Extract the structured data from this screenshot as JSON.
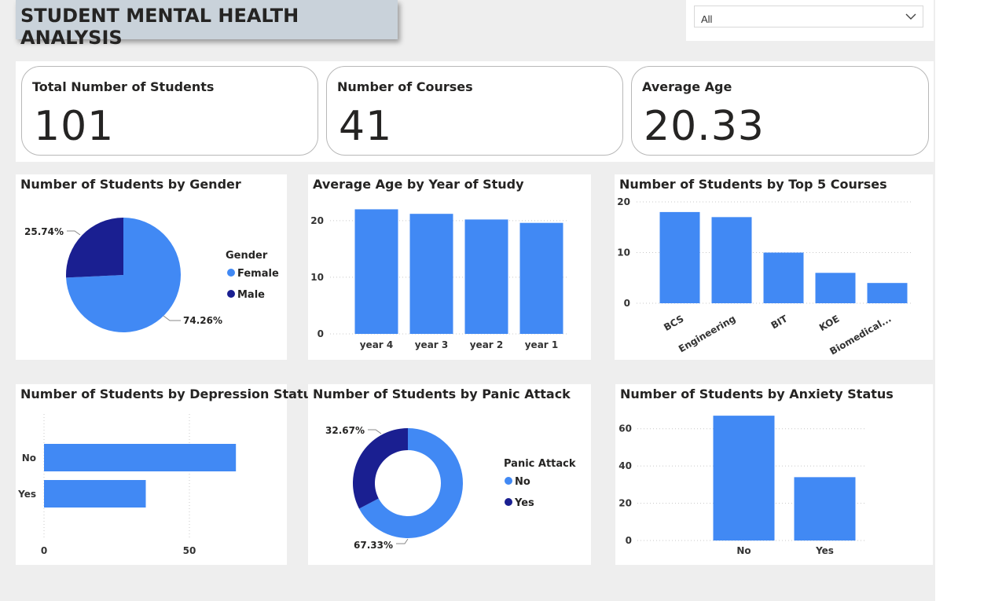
{
  "header": {
    "title": "STUDENT MENTAL HEALTH ANALYSIS"
  },
  "slicer": {
    "selected": "All"
  },
  "kpis": [
    {
      "label": "Total Number of Students",
      "value": "101"
    },
    {
      "label": "Number of Courses",
      "value": "41"
    },
    {
      "label": "Average Age",
      "value": "20.33"
    }
  ],
  "colors": {
    "primary": "#4189f4",
    "secondary": "#1a1f91",
    "background": "#eeeeee",
    "title_box": "#c9d2da"
  },
  "chart_data": [
    {
      "id": "gender",
      "type": "pie",
      "title": "Number of Students by Gender",
      "legend_title": "Gender",
      "legend_position": "right",
      "slices": [
        {
          "name": "Female",
          "value": 74.26,
          "label": "74.26%",
          "color": "#4189f4"
        },
        {
          "name": "Male",
          "value": 25.74,
          "label": "25.74%",
          "color": "#1a1f91"
        }
      ]
    },
    {
      "id": "age_year",
      "type": "bar",
      "title": "Average Age by Year of Study",
      "categories": [
        "year 4",
        "year 3",
        "year 2",
        "year 1"
      ],
      "values": [
        22,
        21.2,
        20.2,
        19.6
      ],
      "ylim": [
        0,
        24
      ],
      "yticks": [
        "0",
        "10",
        "20"
      ],
      "grid": true
    },
    {
      "id": "courses",
      "type": "bar",
      "title": "Number of Students by Top 5 Courses",
      "categories": [
        "BCS",
        "Engineering",
        "BIT",
        "KOE",
        "Biomedical..."
      ],
      "values": [
        18,
        17,
        10,
        6,
        4
      ],
      "ylim": [
        0,
        20
      ],
      "yticks": [
        "0",
        "10",
        "20"
      ],
      "grid": true
    },
    {
      "id": "depression",
      "type": "bar",
      "orientation": "horizontal",
      "title": "Number of Students by Depression Status",
      "categories": [
        "No",
        "Yes"
      ],
      "values": [
        66,
        35
      ],
      "xlim": [
        0,
        100
      ],
      "xticks": [
        "0",
        "50"
      ],
      "grid": true
    },
    {
      "id": "panic",
      "type": "pie",
      "donut": true,
      "title": "Number of Students by Panic Attack",
      "legend_title": "Panic Attack",
      "legend_position": "right",
      "slices": [
        {
          "name": "No",
          "value": 67.33,
          "label": "67.33%",
          "color": "#4189f4"
        },
        {
          "name": "Yes",
          "value": 32.67,
          "label": "32.67%",
          "color": "#1a1f91"
        }
      ]
    },
    {
      "id": "anxiety",
      "type": "bar",
      "title": "Number of Students by Anxiety Status",
      "categories": [
        "No",
        "Yes"
      ],
      "values": [
        67,
        34
      ],
      "ylim": [
        0,
        70
      ],
      "yticks": [
        "0",
        "20",
        "40",
        "60"
      ],
      "grid": true
    }
  ]
}
